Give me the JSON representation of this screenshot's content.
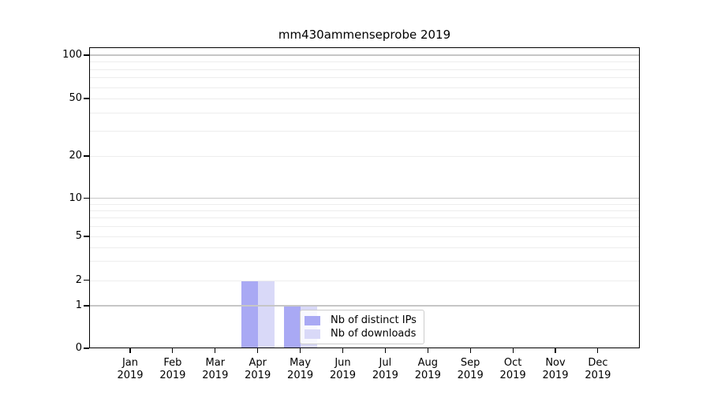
{
  "figure": {
    "title": "mm430ammenseprobe 2019"
  },
  "chart_data": {
    "type": "bar",
    "title": "mm430ammenseprobe 2019",
    "x_categories": [
      "Jan",
      "Feb",
      "Mar",
      "Apr",
      "May",
      "Jun",
      "Jul",
      "Aug",
      "Sep",
      "Oct",
      "Nov",
      "Dec"
    ],
    "x_year_label": "2019",
    "series": [
      {
        "name": "Nb of distinct IPs",
        "color": "#a9a9f4",
        "values": [
          0,
          0,
          0,
          2,
          1,
          0,
          0,
          0,
          0,
          0,
          0,
          0
        ]
      },
      {
        "name": "Nb of downloads",
        "color": "#d9d9f8",
        "values": [
          0,
          0,
          0,
          2,
          1,
          0,
          0,
          0,
          0,
          0,
          0,
          0
        ]
      }
    ],
    "yscale": "symlog",
    "ylim": [
      0,
      115
    ],
    "y_tick_labels": [
      0,
      1,
      2,
      5,
      10,
      20,
      50,
      100
    ],
    "y_major_gridlines": [
      1,
      10,
      100
    ],
    "y_minor_gridlines": [
      2,
      3,
      4,
      5,
      6,
      7,
      8,
      9,
      20,
      30,
      40,
      50,
      60,
      70,
      80,
      90
    ],
    "grid": "horizontal",
    "legend": {
      "position": "lower-center",
      "labels": [
        "Nb of distinct IPs",
        "Nb of downloads"
      ]
    }
  },
  "colors": {
    "bar_distinct_ips": "#a9a9f4",
    "bar_downloads": "#d9d9f8",
    "major_grid": "#c6c6c6",
    "minor_grid": "#ededed",
    "axis": "#000000",
    "legend_border": "#cccccc",
    "background": "#ffffff"
  }
}
